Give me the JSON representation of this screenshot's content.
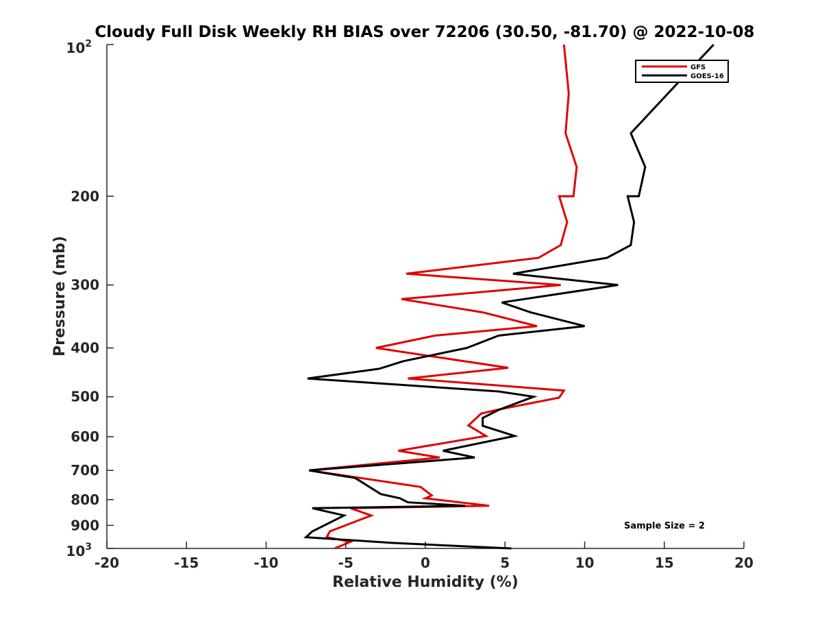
{
  "chart_data": {
    "type": "line",
    "title": "Cloudy Full Disk Weekly RH BIAS over 72206 (30.50, -81.70) @ 2022-10-08",
    "xlabel": "Relative Humidity (%)",
    "ylabel": "Pressure (mb)",
    "xlim": [
      -20,
      20
    ],
    "ylim": [
      1000,
      100
    ],
    "yscale": "log",
    "x_ticks": [
      -20,
      -15,
      -10,
      -5,
      0,
      5,
      10,
      15,
      20
    ],
    "x_tick_labels": [
      "-20",
      "-15",
      "-10",
      "-5",
      "0",
      "5",
      "10",
      "15",
      "20"
    ],
    "y_ticks": [
      100,
      200,
      300,
      400,
      500,
      600,
      700,
      800,
      900,
      1000
    ],
    "y_tick_labels": [
      "",
      "200",
      "300",
      "400",
      "500",
      "600",
      "700",
      "800",
      "900",
      ""
    ],
    "y_tick_base": "10",
    "y_tick_exp_top": "2",
    "y_tick_exp_bottom": "3",
    "legend_position": "top-right",
    "annotation": "Sample Size = 2",
    "series": [
      {
        "name": "GFS",
        "color": "#e00000",
        "points": [
          [
            8.7,
            100
          ],
          [
            9.0,
            125
          ],
          [
            8.8,
            150
          ],
          [
            9.5,
            175
          ],
          [
            9.3,
            200
          ],
          [
            8.4,
            200
          ],
          [
            8.9,
            225
          ],
          [
            8.5,
            250
          ],
          [
            7.1,
            265
          ],
          [
            -1.2,
            285
          ],
          [
            8.5,
            300
          ],
          [
            -1.5,
            320
          ],
          [
            3.6,
            340
          ],
          [
            7.0,
            362
          ],
          [
            0.6,
            378
          ],
          [
            -3.1,
            400
          ],
          [
            5.2,
            438
          ],
          [
            -1.1,
            460
          ],
          [
            8.7,
            486
          ],
          [
            8.4,
            502
          ],
          [
            4.5,
            531
          ],
          [
            3.5,
            540
          ],
          [
            2.7,
            570
          ],
          [
            3.8,
            598
          ],
          [
            -1.7,
            640
          ],
          [
            0.9,
            660
          ],
          [
            -7.3,
            700
          ],
          [
            -0.3,
            755
          ],
          [
            0.4,
            785
          ],
          [
            0.0,
            795
          ],
          [
            4.0,
            823
          ],
          [
            -4.7,
            832
          ],
          [
            -3.4,
            860
          ],
          [
            -6.0,
            925
          ],
          [
            -6.2,
            950
          ],
          [
            -4.7,
            970
          ],
          [
            -5.7,
            1000
          ]
        ]
      },
      {
        "name": "GOES-16",
        "color": "#000000",
        "points": [
          [
            18.1,
            100
          ],
          [
            12.9,
            150
          ],
          [
            13.8,
            175
          ],
          [
            13.4,
            200
          ],
          [
            12.7,
            200
          ],
          [
            13.1,
            225
          ],
          [
            12.9,
            250
          ],
          [
            11.4,
            265
          ],
          [
            5.5,
            285
          ],
          [
            12.1,
            300
          ],
          [
            4.8,
            325
          ],
          [
            6.6,
            340
          ],
          [
            10.0,
            362
          ],
          [
            4.6,
            378
          ],
          [
            2.6,
            400
          ],
          [
            -1.4,
            425
          ],
          [
            -2.9,
            440
          ],
          [
            -7.4,
            460
          ],
          [
            4.6,
            488
          ],
          [
            6.8,
            500
          ],
          [
            4.6,
            531
          ],
          [
            3.6,
            551
          ],
          [
            3.6,
            571
          ],
          [
            5.6,
            598
          ],
          [
            1.1,
            640
          ],
          [
            3.1,
            660
          ],
          [
            -7.3,
            700
          ],
          [
            -4.4,
            725
          ],
          [
            -2.8,
            780
          ],
          [
            -1.6,
            795
          ],
          [
            -1.1,
            810
          ],
          [
            2.5,
            823
          ],
          [
            -7.1,
            832
          ],
          [
            -5.1,
            860
          ],
          [
            -7.1,
            925
          ],
          [
            -7.5,
            950
          ],
          [
            -2.1,
            975
          ],
          [
            5.4,
            1000
          ]
        ]
      }
    ]
  }
}
